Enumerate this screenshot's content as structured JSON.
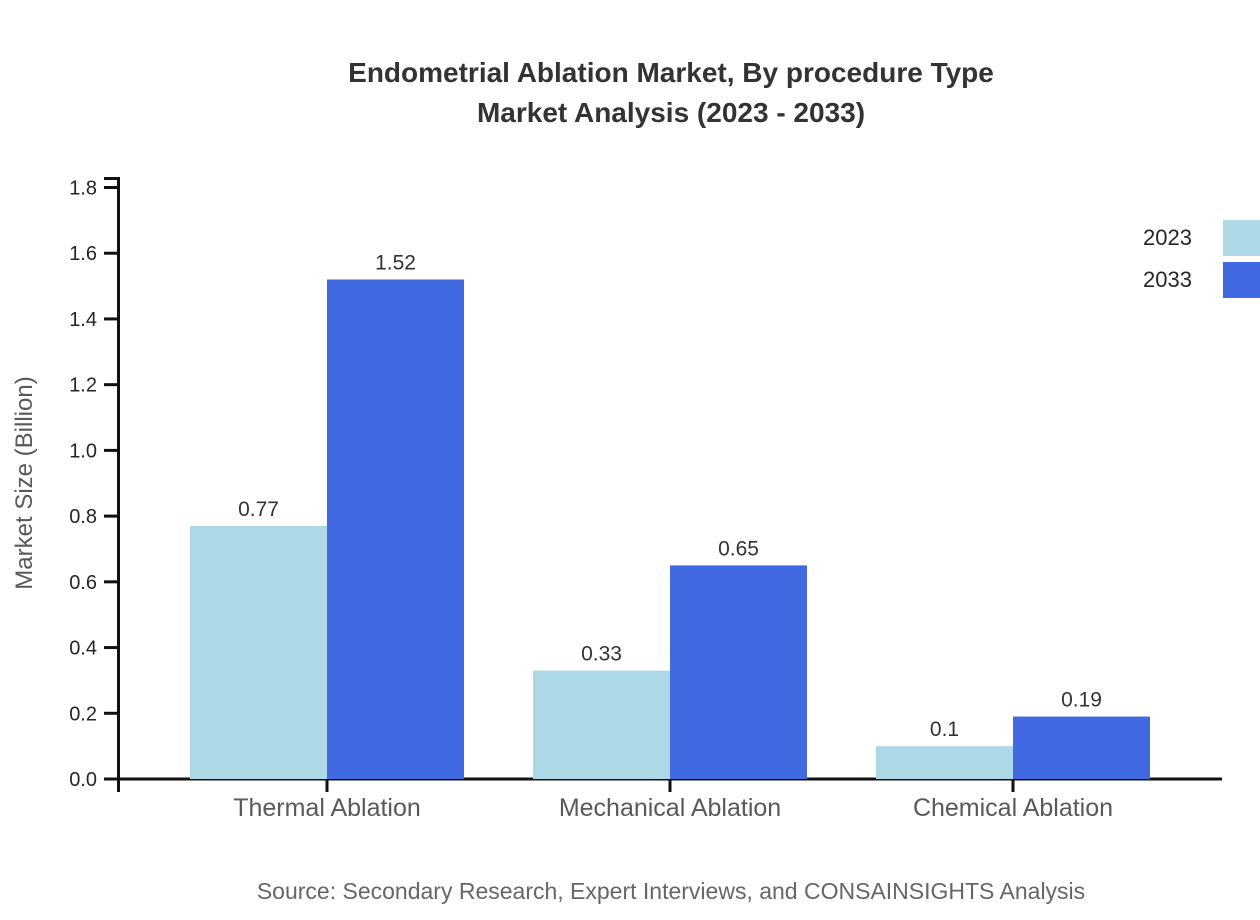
{
  "title": {
    "line1": "Endometrial Ablation Market, By procedure Type",
    "line2": "Market Analysis (2023 - 2033)"
  },
  "source": {
    "text": "Source: Secondary Research, Expert Interviews, and CONSAINSIGHTS Analysis"
  },
  "chart_data": {
    "type": "bar",
    "title": "Endometrial Ablation Market, By procedure Type Market Analysis (2023 - 2033)",
    "categories": [
      "Thermal Ablation",
      "Mechanical Ablation",
      "Chemical Ablation"
    ],
    "series": [
      {
        "name": "2023",
        "color": "#ADD8E6",
        "values": [
          0.77,
          0.33,
          0.1
        ],
        "labels": [
          "0.77",
          "0.33",
          "0.1"
        ]
      },
      {
        "name": "2033",
        "color": "#4169E1",
        "values": [
          1.52,
          0.65,
          0.19
        ],
        "labels": [
          "1.52",
          "0.65",
          "0.19"
        ]
      }
    ],
    "xlabel": "",
    "ylabel": "Market Size (Billion)",
    "ylim": [
      0,
      1.8
    ],
    "yticks": [
      "0.0",
      "0.2",
      "0.4",
      "0.6",
      "0.8",
      "1.0",
      "1.2",
      "1.4",
      "1.6",
      "1.8"
    ],
    "grid": false,
    "legend_position": "top-right",
    "bar_value_labels": true
  }
}
